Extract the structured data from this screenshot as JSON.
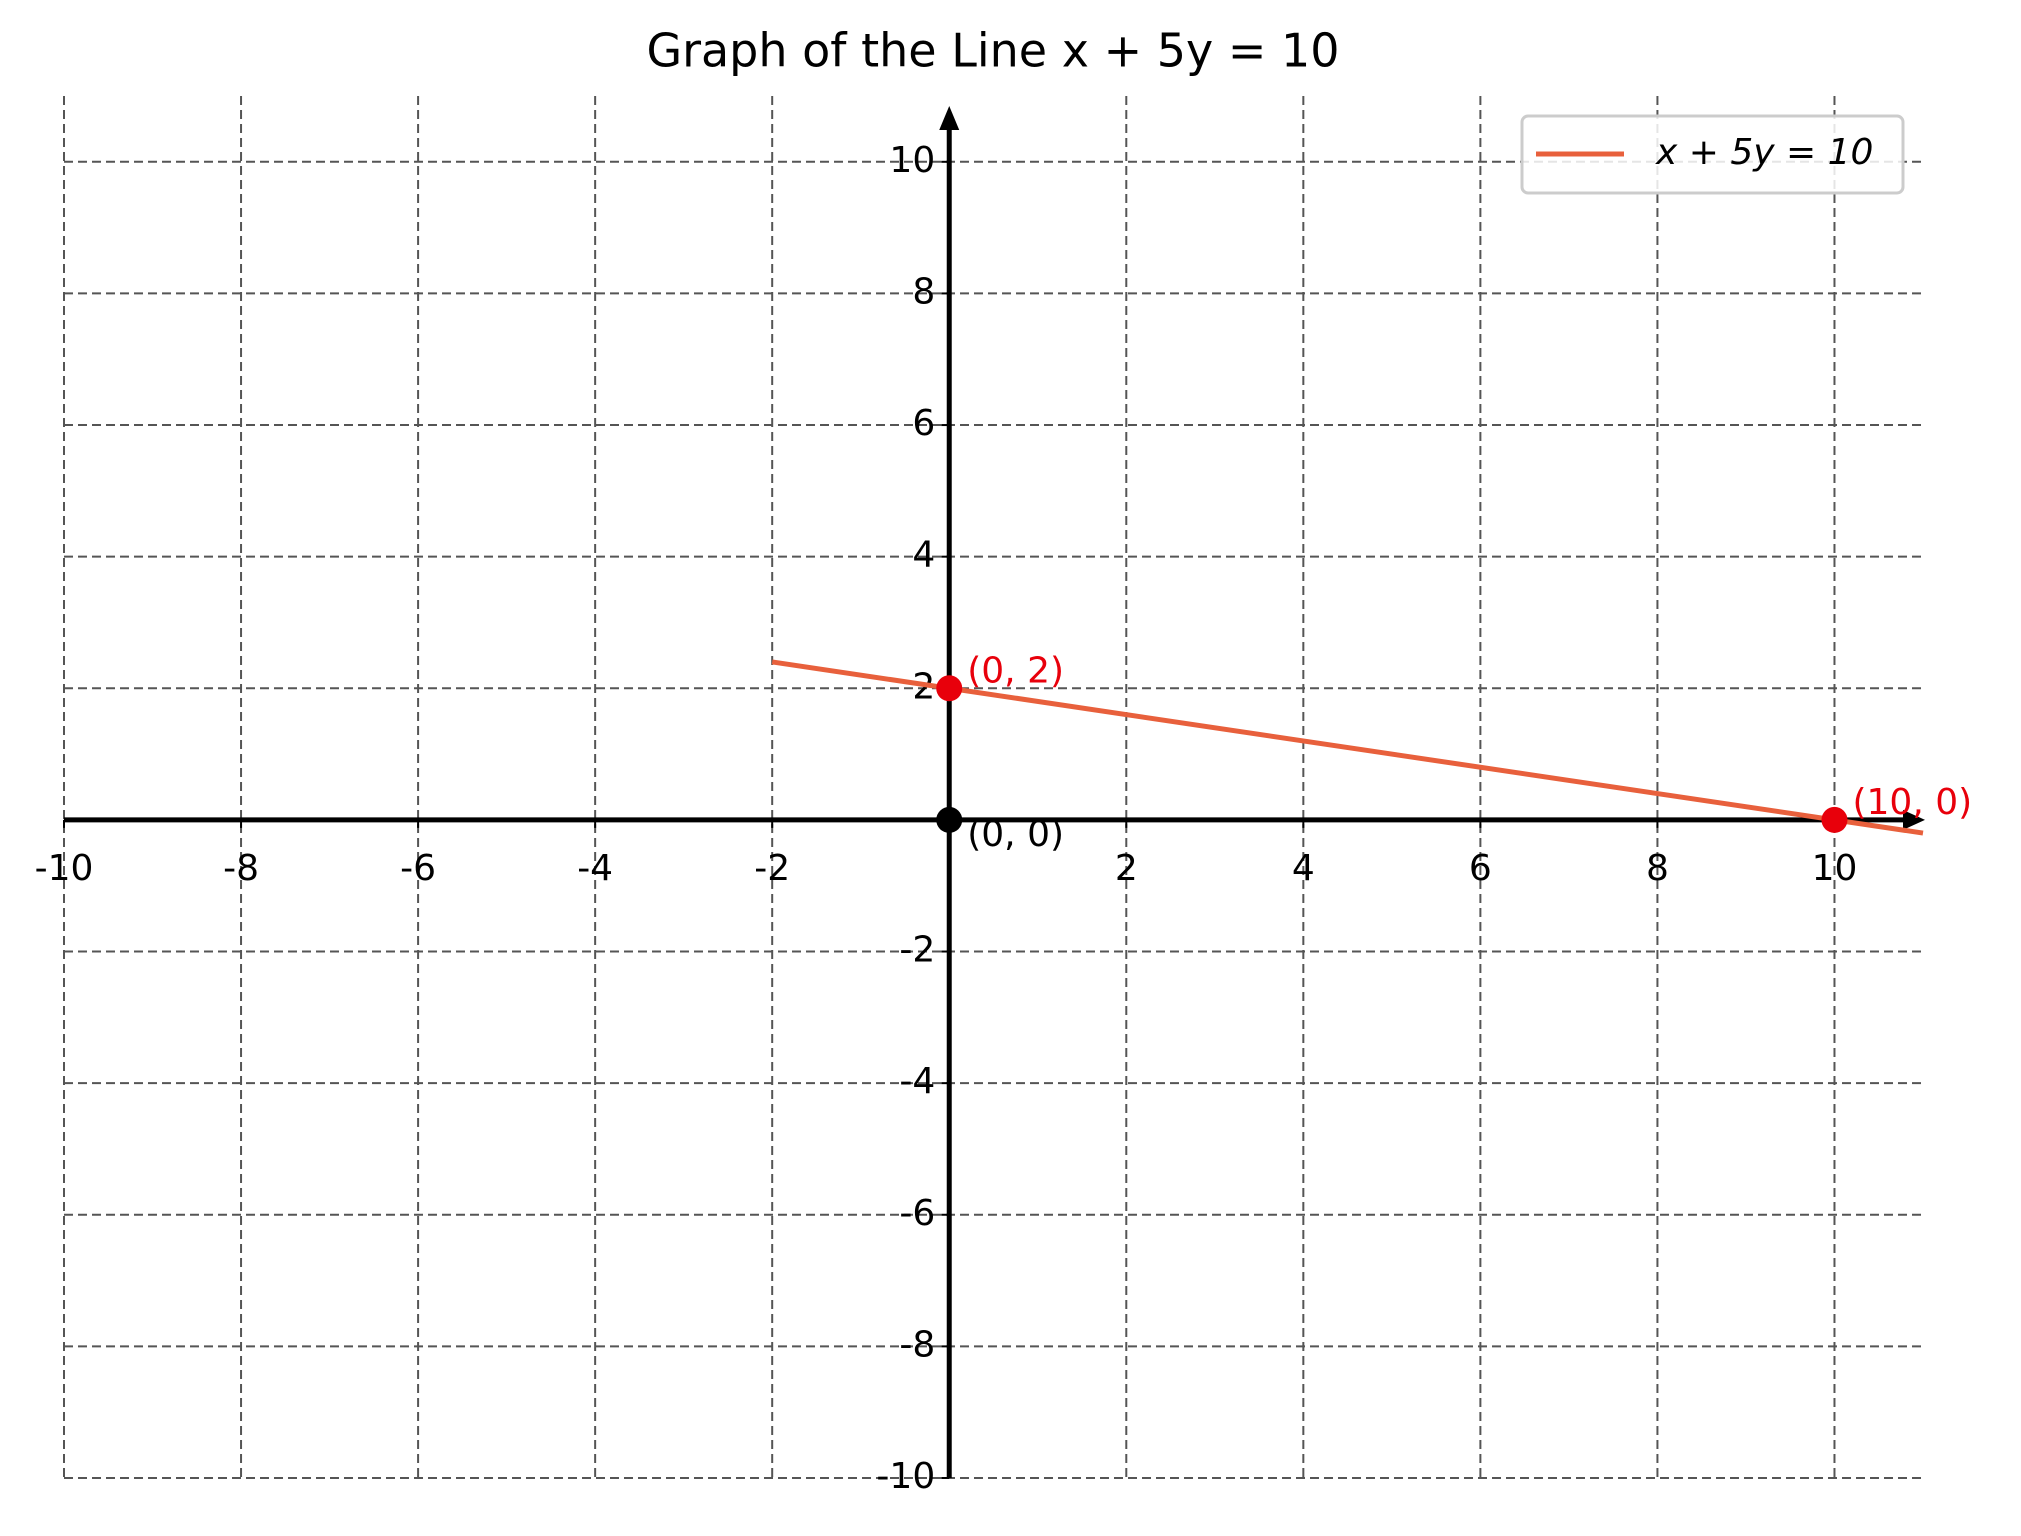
{
  "chart_data": {
    "type": "line",
    "title": "Graph of the Line x + 5y = 10",
    "series": [
      {
        "name": "x + 5y = 10",
        "color": "#e8603c",
        "x": [
          -2,
          11
        ],
        "values": [
          2.4,
          -0.2
        ]
      }
    ],
    "points": [
      {
        "x": 0,
        "y": 2,
        "label": "(0, 2)",
        "color": "#e8000b"
      },
      {
        "x": 10,
        "y": 0,
        "label": "(10, 0)",
        "color": "#e8000b"
      },
      {
        "x": 0,
        "y": 0,
        "label": "(0, 0)",
        "color": "#000000"
      }
    ],
    "xlim": [
      -10,
      11
    ],
    "ylim": [
      -10,
      11
    ],
    "xticks": [
      -10,
      -8,
      -6,
      -4,
      -2,
      2,
      4,
      6,
      8,
      10
    ],
    "yticks": [
      -10,
      -8,
      -6,
      -4,
      -2,
      2,
      4,
      6,
      8,
      10
    ],
    "grid": true,
    "legend": "upper right"
  }
}
